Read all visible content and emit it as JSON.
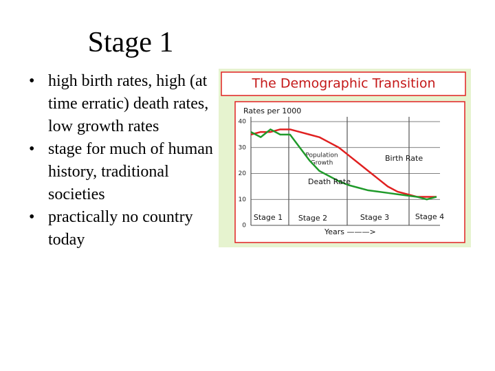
{
  "slide": {
    "title": "Stage 1",
    "bullets": [
      "high birth rates, high (at time erratic) death rates, low growth rates",
      "stage for much of human history, traditional societies",
      "practically no country today"
    ]
  },
  "chart_data": {
    "type": "line",
    "title": "The Demographic Transition",
    "y_label": "Rates per 1000",
    "x_label": "Years ———>",
    "categories": [
      null,
      null,
      null,
      null,
      null,
      null,
      null,
      null,
      null,
      null,
      null,
      null,
      null,
      null,
      null,
      null,
      null,
      null,
      null,
      null
    ],
    "series": [
      {
        "name": "Birth Rate",
        "color": "#e02020",
        "values": [
          35,
          36,
          36,
          37,
          37,
          36,
          35,
          34,
          32,
          30,
          27,
          24,
          21,
          18,
          15,
          13,
          12,
          11,
          11,
          11
        ]
      },
      {
        "name": "Death Rate",
        "color": "#1f9a2a",
        "values": [
          36,
          34,
          37,
          35,
          35,
          30,
          25,
          21,
          19,
          17,
          15.5,
          14.5,
          13.5,
          13,
          12.5,
          12,
          11.5,
          11,
          10,
          11
        ]
      }
    ],
    "ylim": [
      0,
      40
    ],
    "yticks": [
      0,
      10,
      20,
      30,
      40
    ],
    "grid": true,
    "annotations": [
      "Population",
      "Growth"
    ],
    "stages": [
      "Stage 1",
      "Stage 2",
      "Stage 3",
      "Stage 4"
    ]
  }
}
